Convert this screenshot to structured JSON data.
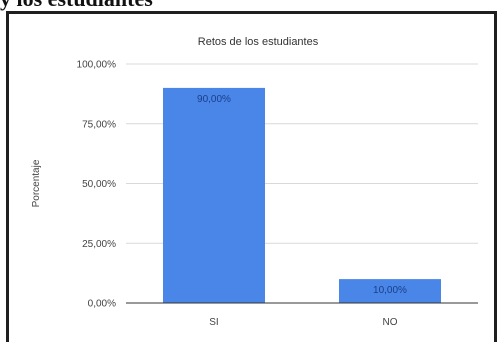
{
  "header": {
    "caption": "y los estudiantes"
  },
  "chart_data": {
    "type": "bar",
    "title": "Retos de los estudiantes",
    "xlabel": "",
    "ylabel": "Porcentaje",
    "categories": [
      "SI",
      "NO"
    ],
    "values": [
      90,
      10
    ],
    "data_labels": [
      "90,00%",
      "10,00%"
    ],
    "yticks": [
      0,
      25,
      50,
      75,
      100
    ],
    "ytick_labels": [
      "0,00%",
      "25,00%",
      "50,00%",
      "75,00%",
      "100,00%"
    ],
    "ylim": [
      0,
      100
    ],
    "grid": true,
    "legend": "none",
    "bar_color": "#4a86e8",
    "grid_color": "#d9d9d9"
  }
}
